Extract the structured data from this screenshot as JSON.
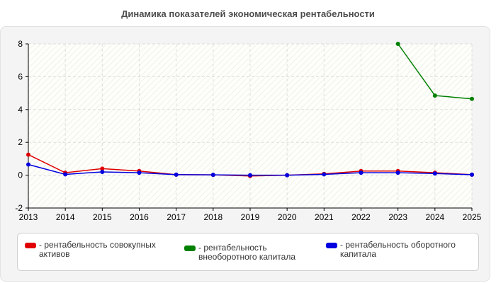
{
  "title": "Динамика показателей экономическая рентабельности",
  "chart_data": {
    "type": "line",
    "x": [
      2013,
      2014,
      2015,
      2016,
      2017,
      2018,
      2019,
      2020,
      2021,
      2022,
      2023,
      2024,
      2025
    ],
    "ylim": [
      -2,
      8
    ],
    "yticks": [
      -2,
      0,
      2,
      4,
      6,
      8
    ],
    "grid": true,
    "legend_position": "bottom",
    "series": [
      {
        "name": "рентабельность совокупных активов",
        "color": "#e00000",
        "values": [
          1.25,
          0.15,
          0.4,
          0.25,
          0.03,
          0.02,
          -0.05,
          0.0,
          0.08,
          0.25,
          0.25,
          0.15,
          0.03
        ]
      },
      {
        "name": "рентабельность внеоборотного капитала",
        "color": "#008000",
        "values": [
          null,
          null,
          null,
          null,
          null,
          null,
          null,
          null,
          null,
          null,
          8.0,
          4.85,
          4.65
        ]
      },
      {
        "name": "рентабельность оборотного капитала",
        "color": "#0000e0",
        "values": [
          0.65,
          0.05,
          0.2,
          0.15,
          0.03,
          0.02,
          0.0,
          0.0,
          0.05,
          0.15,
          0.15,
          0.1,
          0.03
        ]
      }
    ]
  }
}
